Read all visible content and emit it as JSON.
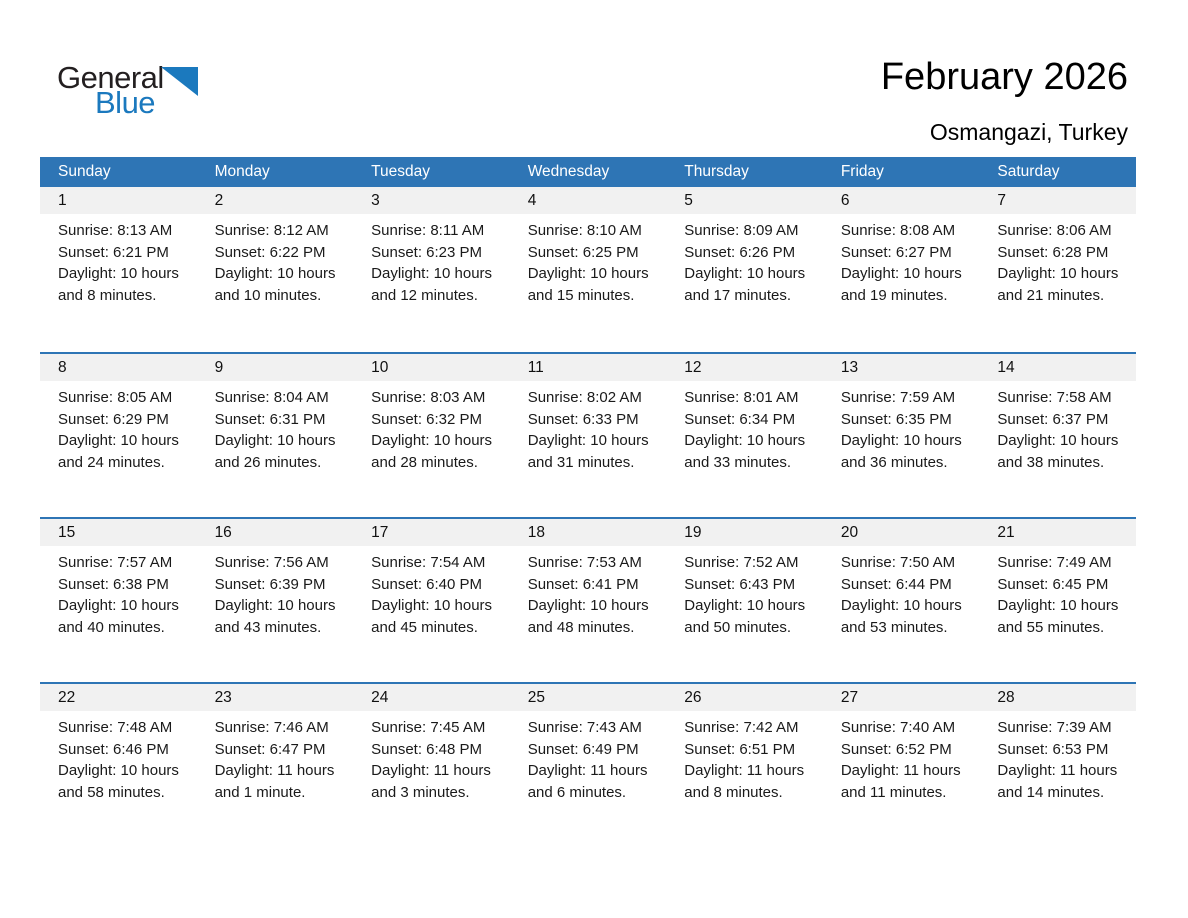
{
  "logo": {
    "general": "General",
    "blue": "Blue"
  },
  "header": {
    "title": "February 2026",
    "location": "Osmangazi, Turkey"
  },
  "colors": {
    "header_blue": "#2e75b5",
    "logo_blue": "#1b79be",
    "day_strip_gray": "#f1f1f1"
  },
  "calendar": {
    "day_headers": [
      "Sunday",
      "Monday",
      "Tuesday",
      "Wednesday",
      "Thursday",
      "Friday",
      "Saturday"
    ],
    "weeks": [
      [
        {
          "day": "1",
          "lines": [
            "Sunrise: 8:13 AM",
            "Sunset: 6:21 PM",
            "Daylight: 10 hours",
            "and 8 minutes."
          ]
        },
        {
          "day": "2",
          "lines": [
            "Sunrise: 8:12 AM",
            "Sunset: 6:22 PM",
            "Daylight: 10 hours",
            "and 10 minutes."
          ]
        },
        {
          "day": "3",
          "lines": [
            "Sunrise: 8:11 AM",
            "Sunset: 6:23 PM",
            "Daylight: 10 hours",
            "and 12 minutes."
          ]
        },
        {
          "day": "4",
          "lines": [
            "Sunrise: 8:10 AM",
            "Sunset: 6:25 PM",
            "Daylight: 10 hours",
            "and 15 minutes."
          ]
        },
        {
          "day": "5",
          "lines": [
            "Sunrise: 8:09 AM",
            "Sunset: 6:26 PM",
            "Daylight: 10 hours",
            "and 17 minutes."
          ]
        },
        {
          "day": "6",
          "lines": [
            "Sunrise: 8:08 AM",
            "Sunset: 6:27 PM",
            "Daylight: 10 hours",
            "and 19 minutes."
          ]
        },
        {
          "day": "7",
          "lines": [
            "Sunrise: 8:06 AM",
            "Sunset: 6:28 PM",
            "Daylight: 10 hours",
            "and 21 minutes."
          ]
        }
      ],
      [
        {
          "day": "8",
          "lines": [
            "Sunrise: 8:05 AM",
            "Sunset: 6:29 PM",
            "Daylight: 10 hours",
            "and 24 minutes."
          ]
        },
        {
          "day": "9",
          "lines": [
            "Sunrise: 8:04 AM",
            "Sunset: 6:31 PM",
            "Daylight: 10 hours",
            "and 26 minutes."
          ]
        },
        {
          "day": "10",
          "lines": [
            "Sunrise: 8:03 AM",
            "Sunset: 6:32 PM",
            "Daylight: 10 hours",
            "and 28 minutes."
          ]
        },
        {
          "day": "11",
          "lines": [
            "Sunrise: 8:02 AM",
            "Sunset: 6:33 PM",
            "Daylight: 10 hours",
            "and 31 minutes."
          ]
        },
        {
          "day": "12",
          "lines": [
            "Sunrise: 8:01 AM",
            "Sunset: 6:34 PM",
            "Daylight: 10 hours",
            "and 33 minutes."
          ]
        },
        {
          "day": "13",
          "lines": [
            "Sunrise: 7:59 AM",
            "Sunset: 6:35 PM",
            "Daylight: 10 hours",
            "and 36 minutes."
          ]
        },
        {
          "day": "14",
          "lines": [
            "Sunrise: 7:58 AM",
            "Sunset: 6:37 PM",
            "Daylight: 10 hours",
            "and 38 minutes."
          ]
        }
      ],
      [
        {
          "day": "15",
          "lines": [
            "Sunrise: 7:57 AM",
            "Sunset: 6:38 PM",
            "Daylight: 10 hours",
            "and 40 minutes."
          ]
        },
        {
          "day": "16",
          "lines": [
            "Sunrise: 7:56 AM",
            "Sunset: 6:39 PM",
            "Daylight: 10 hours",
            "and 43 minutes."
          ]
        },
        {
          "day": "17",
          "lines": [
            "Sunrise: 7:54 AM",
            "Sunset: 6:40 PM",
            "Daylight: 10 hours",
            "and 45 minutes."
          ]
        },
        {
          "day": "18",
          "lines": [
            "Sunrise: 7:53 AM",
            "Sunset: 6:41 PM",
            "Daylight: 10 hours",
            "and 48 minutes."
          ]
        },
        {
          "day": "19",
          "lines": [
            "Sunrise: 7:52 AM",
            "Sunset: 6:43 PM",
            "Daylight: 10 hours",
            "and 50 minutes."
          ]
        },
        {
          "day": "20",
          "lines": [
            "Sunrise: 7:50 AM",
            "Sunset: 6:44 PM",
            "Daylight: 10 hours",
            "and 53 minutes."
          ]
        },
        {
          "day": "21",
          "lines": [
            "Sunrise: 7:49 AM",
            "Sunset: 6:45 PM",
            "Daylight: 10 hours",
            "and 55 minutes."
          ]
        }
      ],
      [
        {
          "day": "22",
          "lines": [
            "Sunrise: 7:48 AM",
            "Sunset: 6:46 PM",
            "Daylight: 10 hours",
            "and 58 minutes."
          ]
        },
        {
          "day": "23",
          "lines": [
            "Sunrise: 7:46 AM",
            "Sunset: 6:47 PM",
            "Daylight: 11 hours",
            "and 1 minute."
          ]
        },
        {
          "day": "24",
          "lines": [
            "Sunrise: 7:45 AM",
            "Sunset: 6:48 PM",
            "Daylight: 11 hours",
            "and 3 minutes."
          ]
        },
        {
          "day": "25",
          "lines": [
            "Sunrise: 7:43 AM",
            "Sunset: 6:49 PM",
            "Daylight: 11 hours",
            "and 6 minutes."
          ]
        },
        {
          "day": "26",
          "lines": [
            "Sunrise: 7:42 AM",
            "Sunset: 6:51 PM",
            "Daylight: 11 hours",
            "and 8 minutes."
          ]
        },
        {
          "day": "27",
          "lines": [
            "Sunrise: 7:40 AM",
            "Sunset: 6:52 PM",
            "Daylight: 11 hours",
            "and 11 minutes."
          ]
        },
        {
          "day": "28",
          "lines": [
            "Sunrise: 7:39 AM",
            "Sunset: 6:53 PM",
            "Daylight: 11 hours",
            "and 14 minutes."
          ]
        }
      ]
    ]
  }
}
